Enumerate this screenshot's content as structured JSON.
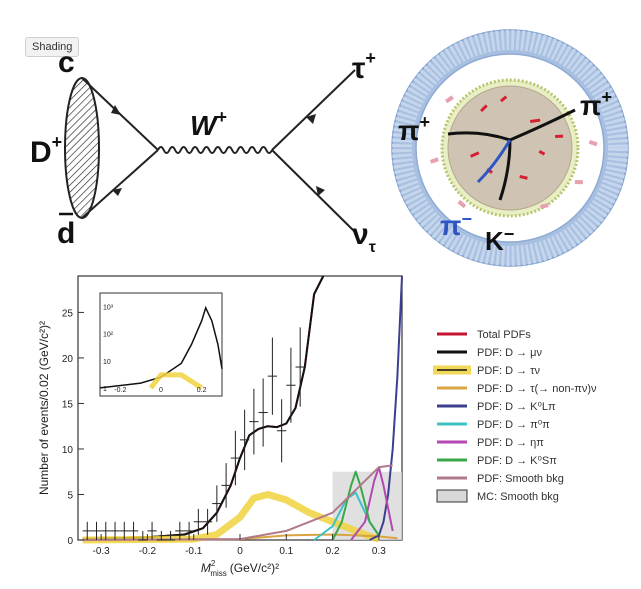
{
  "tooltip": "Shading",
  "feynman": {
    "meson": "D",
    "meson_charge": "+",
    "quark_top": "c",
    "quark_bottom": "d",
    "boson": "W",
    "boson_charge": "+",
    "lepton": "τ",
    "lepton_charge": "+",
    "neutrino": "ν",
    "neutrino_sub": "τ"
  },
  "detector": {
    "label_pi_left": "π",
    "label_pi_left_charge": "+",
    "label_pi_right": "π",
    "label_pi_right_charge": "+",
    "label_pi_minus": "π",
    "label_pi_minus_charge": "−",
    "label_kaon": "K",
    "label_kaon_charge": "−"
  },
  "chart_data": {
    "type": "line",
    "xlabel": "M²miss (GeV/c²)²",
    "xlabel_main": "M",
    "xlabel_sub": "miss",
    "xlabel_sup": "2",
    "xlabel_units": "(GeV/c²)²",
    "ylabel": "Number of events/0.02 (GeV/c²)²",
    "xlim": [
      -0.35,
      0.35
    ],
    "ylim": [
      0,
      29
    ],
    "xticks": [
      "-0.3",
      "-0.2",
      "-0.1",
      "0",
      "0.1",
      "0.2",
      "0.3"
    ],
    "yticks": [
      "0",
      "5",
      "10",
      "15",
      "20",
      "25"
    ],
    "data_points": {
      "name": "Data",
      "x": [
        -0.33,
        -0.31,
        -0.29,
        -0.27,
        -0.25,
        -0.23,
        -0.21,
        -0.19,
        -0.17,
        -0.15,
        -0.13,
        -0.11,
        -0.09,
        -0.07,
        -0.05,
        -0.03,
        -0.01,
        0.01,
        0.03,
        0.05,
        0.07,
        0.09,
        0.11,
        0.13
      ],
      "y": [
        1,
        1,
        1,
        1,
        1,
        1,
        0,
        1,
        0,
        0,
        1,
        1,
        2,
        2,
        4,
        6,
        9,
        11,
        13,
        14,
        18,
        12,
        17,
        19
      ]
    },
    "series": [
      {
        "name": "Total PDFs",
        "color": "#c4122f",
        "x": [
          -0.34,
          -0.2,
          -0.12,
          -0.08,
          -0.05,
          -0.02,
          0.0,
          0.02,
          0.04,
          0.06,
          0.08,
          0.1,
          0.12,
          0.14,
          0.16,
          0.18
        ],
        "y": [
          0.1,
          0.3,
          0.6,
          1.3,
          3,
          6,
          9,
          11.5,
          12.2,
          12.5,
          12.4,
          12.8,
          14.5,
          19,
          27,
          40
        ]
      },
      {
        "name": "PDF: D → μν",
        "color": "#111111",
        "x": [
          -0.34,
          -0.2,
          -0.12,
          -0.08,
          -0.05,
          -0.02,
          0.0,
          0.02,
          0.04,
          0.06,
          0.08,
          0.1,
          0.12,
          0.14,
          0.16,
          0.18
        ],
        "y": [
          0.1,
          0.3,
          0.6,
          1.3,
          3,
          6,
          9,
          11.5,
          12.2,
          12.5,
          12.4,
          12.8,
          14.5,
          19,
          27,
          40
        ]
      },
      {
        "name": "PDF: D → τν",
        "color": "#f0d23c",
        "x": [
          -0.34,
          -0.1,
          -0.05,
          0.0,
          0.03,
          0.06,
          0.1,
          0.15,
          0.2,
          0.25,
          0.28,
          0.3
        ],
        "y": [
          0,
          0.1,
          0.6,
          2.5,
          4.6,
          5.0,
          4.4,
          3.0,
          2.0,
          1.0,
          0.4,
          0.1
        ]
      },
      {
        "name": "PDF: D → τ(→ non-πν)ν",
        "color": "#d9a441",
        "x": [
          -0.34,
          0.0,
          0.1,
          0.2,
          0.3,
          0.34
        ],
        "y": [
          0,
          0.1,
          0.5,
          0.6,
          0.4,
          0.2
        ]
      },
      {
        "name": "PDF: D → K⁰Lπ",
        "color": "#3b3f8f",
        "x": [
          0.28,
          0.3,
          0.31,
          0.32,
          0.33,
          0.34,
          0.35
        ],
        "y": [
          0,
          0.5,
          2,
          5,
          10,
          18,
          29
        ]
      },
      {
        "name": "PDF: D → π⁰π",
        "color": "#3cc2c2",
        "x": [
          0.16,
          0.2,
          0.23,
          0.25,
          0.28,
          0.3
        ],
        "y": [
          0,
          1.5,
          4.5,
          5.2,
          2,
          0.5
        ]
      },
      {
        "name": "PDF: D → ηπ",
        "color": "#b347b3",
        "x": [
          0.24,
          0.27,
          0.29,
          0.3,
          0.31,
          0.33
        ],
        "y": [
          0,
          2,
          6.5,
          8,
          6,
          1
        ]
      },
      {
        "name": "PDF: D → K⁰Sπ",
        "color": "#3aa84a",
        "x": [
          0.2,
          0.22,
          0.24,
          0.25,
          0.26,
          0.28,
          0.3
        ],
        "y": [
          0,
          2,
          6,
          7.5,
          6,
          2,
          0.5
        ]
      },
      {
        "name": "PDF: Smooth bkg",
        "color": "#b07a8a",
        "x": [
          -0.34,
          0.0,
          0.1,
          0.2,
          0.27,
          0.3,
          0.33
        ],
        "y": [
          0,
          0.1,
          1,
          3,
          6.5,
          8,
          8.2
        ]
      },
      {
        "name": "MC: Smooth bkg",
        "color": "#d8d8d8",
        "x": [
          0.2,
          0.35
        ],
        "y": [
          7.5,
          7.5
        ]
      }
    ],
    "legend": [
      "Total PDFs",
      "PDF: D → μν",
      "PDF: D → τν",
      "PDF: D → τ(→ non-πν)ν",
      "PDF: D → K⁰Lπ",
      "PDF: D → π⁰π",
      "PDF: D → ηπ",
      "PDF: D → K⁰Sπ",
      "PDF: Smooth bkg",
      "MC: Smooth bkg"
    ],
    "legend_placement": "right",
    "inset": {
      "type": "line",
      "scale": "log",
      "xticks": [
        "-0.2",
        "0",
        "0.2"
      ],
      "yticks": [
        "1",
        "10",
        "10²",
        "10³"
      ],
      "peak_label": "10³"
    }
  }
}
